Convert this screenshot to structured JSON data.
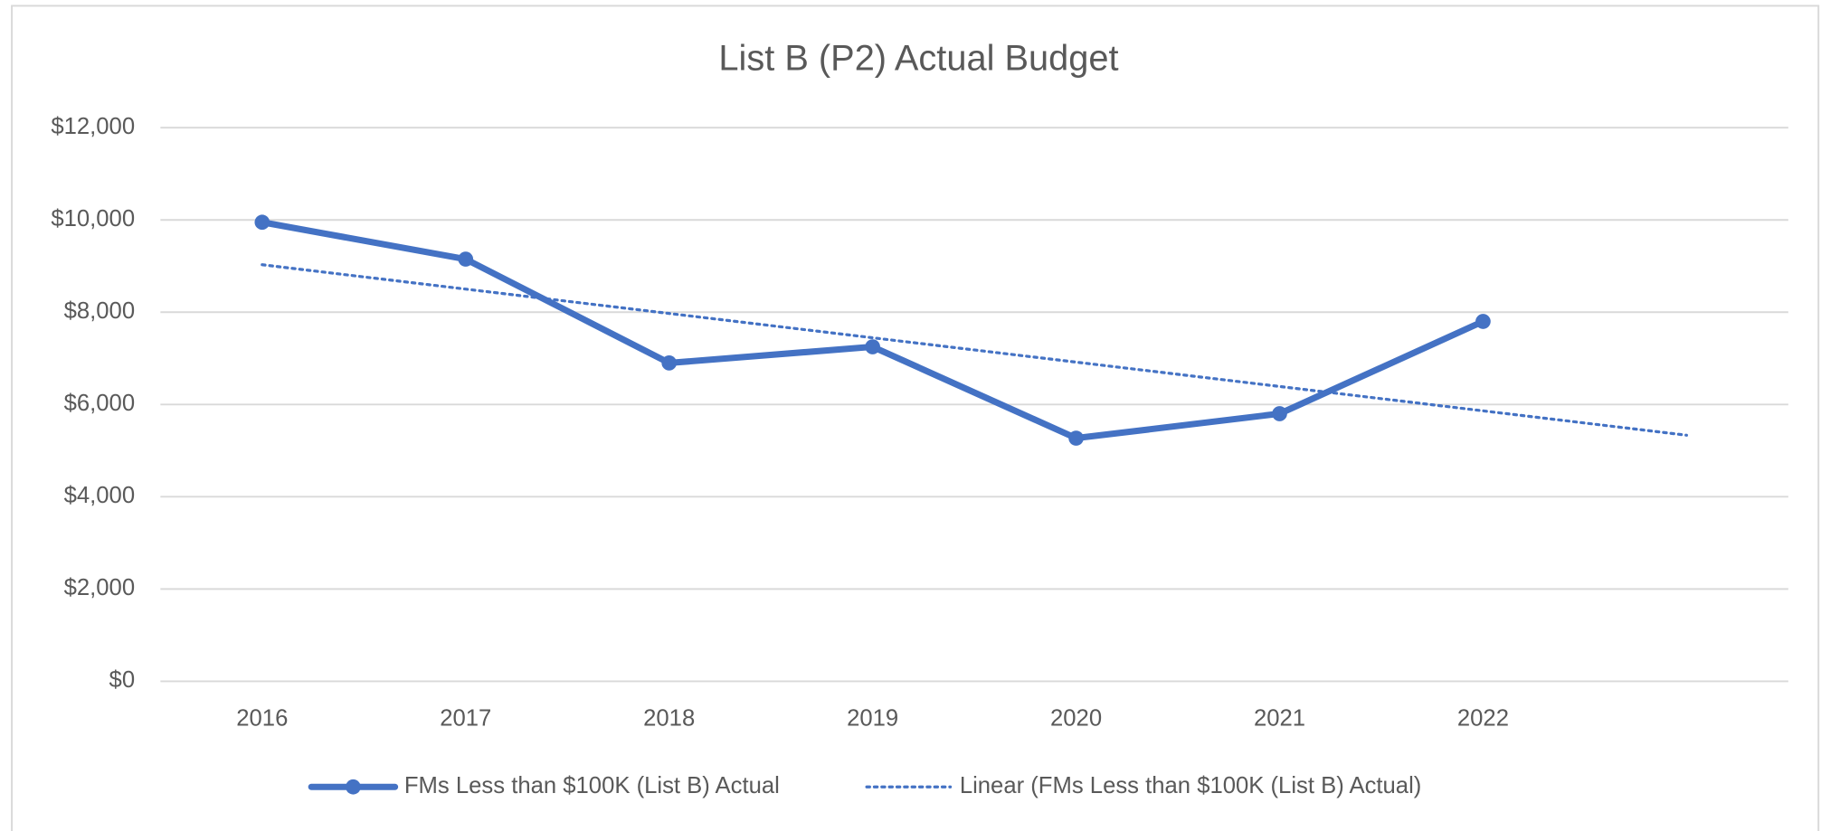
{
  "chart_data": {
    "type": "line",
    "title": "List B (P2) Actual Budget",
    "categories": [
      "2016",
      "2017",
      "2018",
      "2019",
      "2020",
      "2021",
      "2022",
      null
    ],
    "series": [
      {
        "name": "FMs Less than $100K (List B) Actual",
        "color": "#4472c4",
        "line_style": "solid",
        "marker": true,
        "values": [
          9950,
          9150,
          6900,
          7250,
          5270,
          5800,
          7800,
          null
        ]
      },
      {
        "name": "Linear (FMs Less than $100K (List B) Actual)",
        "color": "#4472c4",
        "line_style": "dotted",
        "marker": false,
        "values": [
          9029,
          8501,
          7973,
          7446,
          6918,
          6390,
          5862,
          5334
        ]
      }
    ],
    "ylim": [
      0,
      12000
    ],
    "yticks": [
      {
        "value": 0,
        "label": "$0"
      },
      {
        "value": 2000,
        "label": "$2,000"
      },
      {
        "value": 4000,
        "label": "$4,000"
      },
      {
        "value": 6000,
        "label": "$6,000"
      },
      {
        "value": 8000,
        "label": "$8,000"
      },
      {
        "value": 10000,
        "label": "$10,000"
      },
      {
        "value": 12000,
        "label": "$12,000"
      }
    ],
    "grid": true,
    "legend": "bottom"
  }
}
